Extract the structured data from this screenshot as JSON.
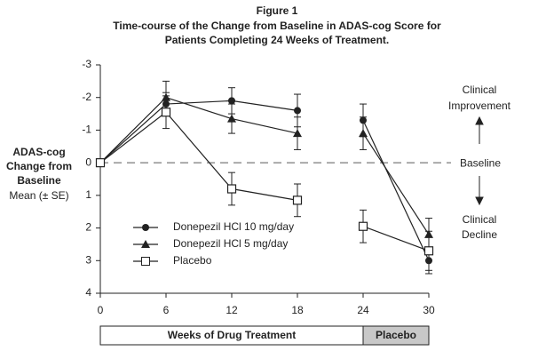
{
  "chart_data": {
    "type": "line",
    "title": [
      "Figure 1",
      "Time-course of the Change from Baseline in ADAS-cog Score for",
      "Patients Completing 24 Weeks of Treatment."
    ],
    "ylabel": [
      "ADAS-cog",
      "Change from",
      "Baseline",
      "Mean (± SE)"
    ],
    "x": [
      0,
      6,
      12,
      18,
      24,
      30
    ],
    "xlim": [
      0,
      30
    ],
    "xticks": [
      0,
      6,
      12,
      18,
      24,
      30
    ],
    "ylim": [
      -3,
      4
    ],
    "yticks": [
      -3,
      -2,
      -1,
      0,
      1,
      2,
      3,
      4
    ],
    "y_inverted": true,
    "baseline": 0,
    "phases": [
      {
        "label": "Weeks of Drug Treatment",
        "from": 0,
        "to": 24,
        "color": "#ffffff"
      },
      {
        "label": "Placebo",
        "from": 24,
        "to": 30,
        "color": "#c8c8c8"
      }
    ],
    "annotations": {
      "improvement": [
        "Clinical",
        "Improvement"
      ],
      "baseline": "Baseline",
      "decline": [
        "Clinical",
        "Decline"
      ]
    },
    "legend": "lower-left",
    "series": [
      {
        "name": "Donepezil HCl 10 mg/day",
        "color": "#222222",
        "marker": "circle",
        "values": [
          0,
          -1.8,
          -1.9,
          -1.6,
          -1.3,
          3.0
        ],
        "errors": [
          0,
          0.35,
          0.4,
          0.5,
          0.5,
          0.4
        ]
      },
      {
        "name": "Donepezil HCl 5 mg/day",
        "color": "#222222",
        "marker": "triangle",
        "values": [
          0,
          -2.0,
          -1.35,
          -0.9,
          -0.9,
          2.2
        ],
        "errors": [
          0,
          0.5,
          0.45,
          0.5,
          0.5,
          0.5
        ]
      },
      {
        "name": "Placebo",
        "color": "#222222",
        "marker": "square-open",
        "values": [
          0,
          -1.55,
          0.8,
          1.15,
          1.95,
          2.7
        ],
        "errors": [
          0,
          0.5,
          0.5,
          0.5,
          0.5,
          0.6
        ]
      }
    ]
  }
}
